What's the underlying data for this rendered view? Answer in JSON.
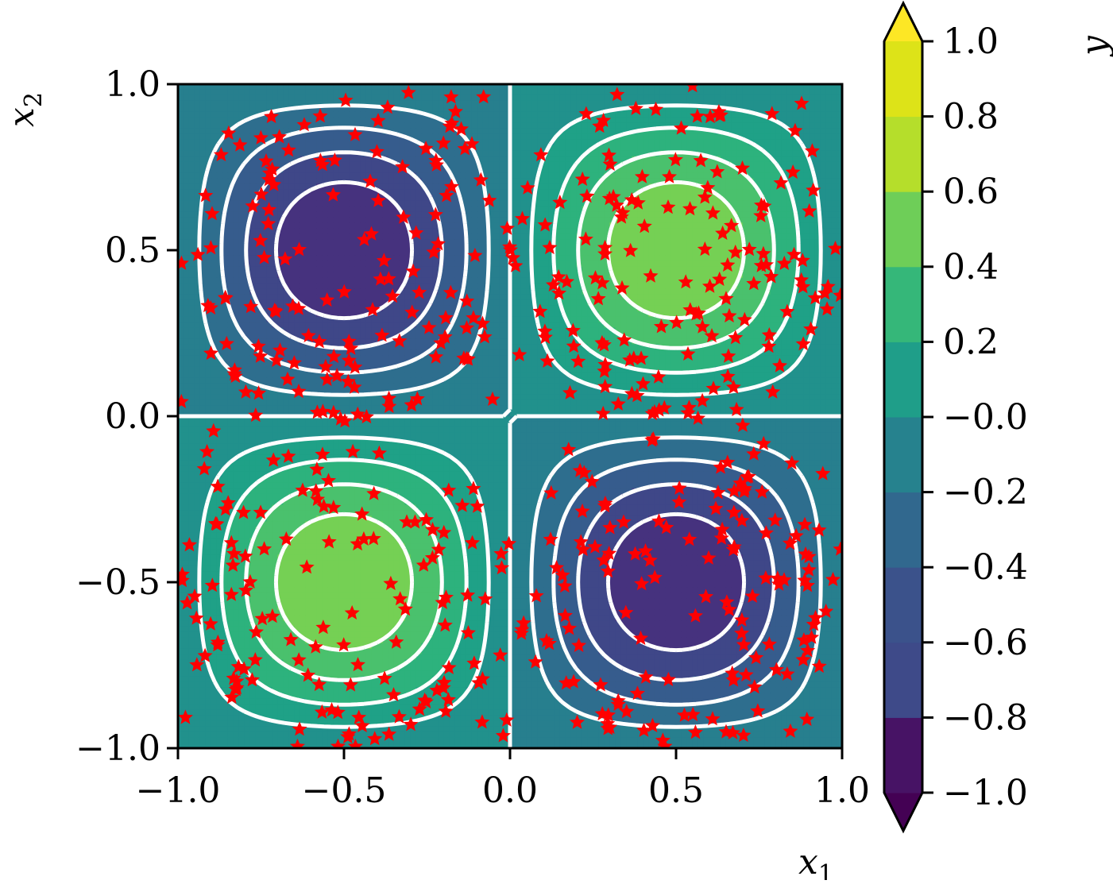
{
  "chart_data": {
    "type": "contour",
    "function": "sin(pi*x1)*sin(pi*x2)",
    "x_label": "x",
    "x_label_sub": "1",
    "y_label": "x",
    "y_label_sub": "2",
    "colorbar_label": "y",
    "xlim": [
      -1.0,
      1.0
    ],
    "ylim": [
      -1.0,
      1.0
    ],
    "x_ticks": [
      -1.0,
      -0.5,
      0.0,
      0.5,
      1.0
    ],
    "x_tick_labels": [
      "−1.0",
      "−0.5",
      "0.0",
      "0.5",
      "1.0"
    ],
    "y_ticks": [
      -1.0,
      -0.5,
      0.0,
      0.5,
      1.0
    ],
    "y_tick_labels": [
      "−1.0",
      "−0.5",
      "0.0",
      "0.5",
      "1.0"
    ],
    "colorbar_levels": [
      -1.0,
      -0.8,
      -0.6,
      -0.4,
      -0.2,
      0.0,
      0.2,
      0.4,
      0.6,
      0.8,
      1.0
    ],
    "colorbar_tick_labels": [
      "−1.0",
      "−0.8",
      "−0.6",
      "−0.4",
      "−0.2",
      "−0.0",
      "0.2",
      "0.4",
      "0.6",
      "0.8",
      "1.0"
    ],
    "colorbar_extend": "both",
    "fill_colors": [
      "#481b6d",
      "#46327e",
      "#3f4788",
      "#365c8d",
      "#2e6e8e",
      "#277f8e",
      "#21918c",
      "#1fa187",
      "#2db27d",
      "#4ac16d",
      "#75d054",
      "#a2da37",
      "#d0e11c"
    ],
    "colorbar_colors": [
      "#440154",
      "#471365",
      "#3e4a89",
      "#3b528b",
      "#31688e",
      "#26828e",
      "#1f9e89",
      "#35b779",
      "#6ece58",
      "#b5de2b",
      "#dde318",
      "#fde725"
    ],
    "contour_lines": {
      "color": "#ffffff",
      "negative_style": "dashed",
      "positive_style": "solid",
      "levels": [
        -0.8,
        -0.6,
        -0.4,
        -0.2,
        0.0,
        0.2,
        0.4,
        0.6,
        0.8
      ]
    },
    "scatter": {
      "marker": "star",
      "color": "#ff0000",
      "count": 560,
      "distribution": "concentrated near the extrema at (±0.5, ±0.5)"
    }
  }
}
